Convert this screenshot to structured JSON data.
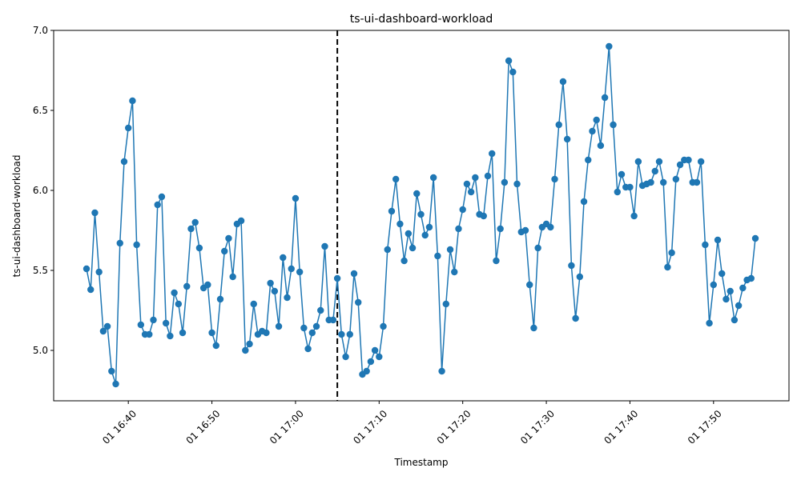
{
  "chart_data": {
    "type": "line",
    "title": "ts-ui-dashboard-workload",
    "xlabel": "Timestamp",
    "ylabel": "ts-ui-dashboard-workload",
    "x_start": "01 16:35",
    "x_end": "01 17:55",
    "x_ticks": [
      "01 16:40",
      "01 16:50",
      "01 17:00",
      "01 17:10",
      "01 17:20",
      "01 17:30",
      "01 17:40",
      "01 17:50"
    ],
    "y_ticks": [
      "5.0",
      "5.5",
      "6.0",
      "6.5",
      "7.0"
    ],
    "ylim": [
      4.68,
      7.0
    ],
    "grid": false,
    "legend": "none",
    "marker_line_time": "01 17:05",
    "series": [
      {
        "color": "#1f77b4",
        "values": [
          5.51,
          5.38,
          5.86,
          5.49,
          5.12,
          5.15,
          4.87,
          4.79,
          5.67,
          6.18,
          6.39,
          6.56,
          5.66,
          5.16,
          5.1,
          5.1,
          5.19,
          5.91,
          5.96,
          5.17,
          5.09,
          5.36,
          5.29,
          5.11,
          5.4,
          5.76,
          5.8,
          5.64,
          5.39,
          5.41,
          5.11,
          5.03,
          5.32,
          5.62,
          5.7,
          5.46,
          5.79,
          5.81,
          5.0,
          5.04,
          5.29,
          5.1,
          5.12,
          5.11,
          5.42,
          5.37,
          5.15,
          5.58,
          5.33,
          5.51,
          5.95,
          5.49,
          5.14,
          5.01,
          5.11,
          5.15,
          5.25,
          5.65,
          5.19,
          5.19,
          5.45,
          5.1,
          4.96,
          5.1,
          5.48,
          5.3,
          4.85,
          4.87,
          4.93,
          5.0,
          4.96,
          5.15,
          5.63,
          5.87,
          6.07,
          5.79,
          5.56,
          5.73,
          5.64,
          5.98,
          5.85,
          5.72,
          5.77,
          6.08,
          5.59,
          4.87,
          5.29,
          5.63,
          5.49,
          5.76,
          5.88,
          6.04,
          5.99,
          6.08,
          5.85,
          5.84,
          6.09,
          6.23,
          5.56,
          5.76,
          6.05,
          6.81,
          6.74,
          6.04,
          5.74,
          5.75,
          5.41,
          5.14,
          5.64,
          5.77,
          5.79,
          5.77,
          6.07,
          6.41,
          6.68,
          6.32,
          5.53,
          5.2,
          5.46,
          5.93,
          6.19,
          6.37,
          6.44,
          6.28,
          6.58,
          6.9,
          6.41,
          5.99,
          6.1,
          6.02,
          6.02,
          5.84,
          6.18,
          6.03,
          6.04,
          6.05,
          6.12,
          6.18,
          6.05,
          5.52,
          5.61,
          6.07,
          6.16,
          6.19,
          6.19,
          6.05,
          6.05,
          6.18,
          5.66,
          5.17,
          5.41,
          5.69,
          5.48,
          5.32,
          5.37,
          5.19,
          5.28,
          5.39,
          5.44,
          5.45,
          5.7
        ]
      }
    ]
  }
}
